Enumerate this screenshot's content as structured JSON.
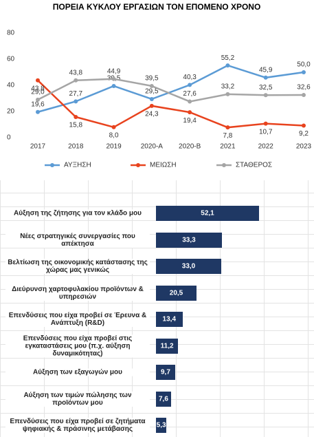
{
  "chart_data": [
    {
      "type": "line",
      "title": "ΠΟΡΕΙΑ ΚΥΚΛΟΥ ΕΡΓΑΣΙΩΝ ΤΟΝ ΕΠΟΜΕΝΟ ΧΡΟΝΟ",
      "categories": [
        "2017",
        "2018",
        "2019",
        "2020-A",
        "2020-B",
        "2021",
        "2022",
        "2023"
      ],
      "ylim": [
        0,
        80
      ],
      "yticks": [
        0,
        20,
        40,
        60,
        80
      ],
      "grid": false,
      "legend": "bottom",
      "series": [
        {
          "name": "ΑΥΞΗΣΗ",
          "color": "#5b9bd5",
          "values": [
            19.6,
            27.7,
            39.5,
            29.5,
            40.3,
            55.2,
            45.9,
            50.0
          ],
          "value_labels": [
            "19,6",
            "27,7",
            "39,5",
            "29,5",
            "40,3",
            "55,2",
            "45,9",
            "50,0"
          ]
        },
        {
          "name": "ΜΕΙΩΣΗ",
          "color": "#e8431e",
          "values": [
            43.8,
            15.8,
            8.0,
            24.3,
            19.4,
            7.8,
            10.7,
            9.2
          ],
          "value_labels": [
            "43,8",
            "15,8",
            "8,0",
            "24,3",
            "19,4",
            "7,8",
            "10,7",
            "9,2"
          ]
        },
        {
          "name": "ΣΤΑΘΕΡΟΣ",
          "color": "#a5a5a5",
          "values": [
            29.0,
            43.8,
            44.9,
            39.5,
            27.6,
            33.2,
            32.5,
            32.6
          ],
          "value_labels": [
            "29,0",
            "43,8",
            "44,9",
            "39,5",
            "27,6",
            "33,2",
            "32,5",
            "32,6"
          ]
        }
      ]
    },
    {
      "type": "hbar",
      "color": "#1f3864",
      "categories": [
        "Αύξηση της ζήτησης για τον κλάδο μου",
        "Νέες στρατηγικές συνεργασίες που απέκτησα",
        "Βελτίωση της οικονομικής κατάστασης της χώρας μας γενικώς",
        "Διεύρυνση χαρτοφυλακίου προϊόντων & υπηρεσιών",
        "Επενδύσεις που είχα προβεί σε Έρευνα & Ανάπτυξη (R&D)",
        "Επενδύσεις που είχα προβεί στις εγκαταστάσεις μου (π.χ. αύξηση δυναμικότητας)",
        "Αύξηση των εξαγωγών μου",
        "Αύξηση των τιμών πώλησης των προϊόντων μου",
        "Επενδύσεις που είχα προβεί σε ζητήματα ψηφιακής & πράσινης μετάβασης"
      ],
      "values": [
        52.1,
        33.3,
        33.0,
        20.5,
        13.4,
        11.2,
        9.7,
        7.6,
        5.3
      ],
      "value_labels": [
        "52,1",
        "33,3",
        "33,0",
        "20,5",
        "13,4",
        "11,2",
        "9,7",
        "7,6",
        "5,3"
      ]
    }
  ]
}
